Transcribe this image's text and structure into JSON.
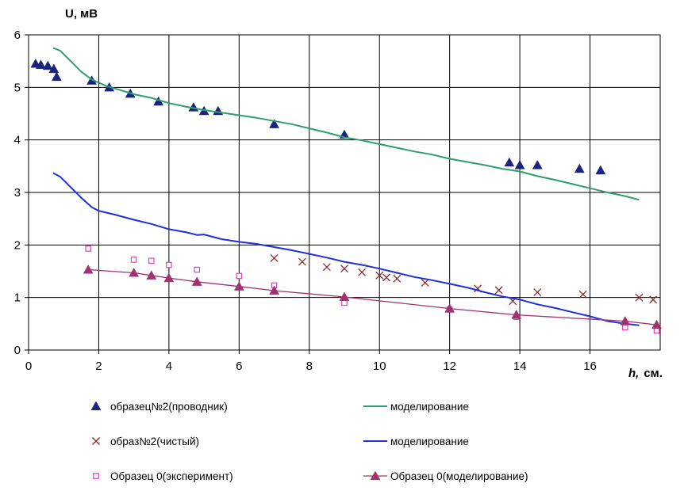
{
  "chart_data": {
    "type": "scatter",
    "xlabel_main": "h,",
    "xlabel_unit": "см.",
    "ylabel": "U, мВ",
    "xlim": [
      0,
      18
    ],
    "ylim": [
      0,
      6
    ],
    "x_ticks": [
      "0",
      "2",
      "4",
      "6",
      "8",
      "10",
      "12",
      "14",
      "16"
    ],
    "y_ticks": [
      "0",
      "1",
      "2",
      "3",
      "4",
      "5",
      "6"
    ],
    "grid": true,
    "legend_position": "bottom",
    "series": [
      {
        "name": "образец№2(проводник)",
        "kind": "scatter",
        "marker": "triangle",
        "color": "#1a237e",
        "points": [
          [
            0.2,
            5.45
          ],
          [
            0.35,
            5.43
          ],
          [
            0.55,
            5.41
          ],
          [
            0.72,
            5.35
          ],
          [
            0.8,
            5.2
          ],
          [
            1.8,
            5.13
          ],
          [
            2.3,
            5.0
          ],
          [
            2.9,
            4.88
          ],
          [
            3.7,
            4.73
          ],
          [
            4.7,
            4.62
          ],
          [
            5.0,
            4.55
          ],
          [
            5.4,
            4.55
          ],
          [
            7.0,
            4.3
          ],
          [
            9.0,
            4.1
          ],
          [
            13.7,
            3.57
          ],
          [
            14.0,
            3.52
          ],
          [
            14.5,
            3.52
          ],
          [
            15.7,
            3.45
          ],
          [
            16.3,
            3.42
          ]
        ]
      },
      {
        "name": "моделирование",
        "kind": "line",
        "color": "#2e9e6e",
        "points": [
          [
            0.7,
            5.75
          ],
          [
            0.9,
            5.7
          ],
          [
            1.2,
            5.5
          ],
          [
            1.5,
            5.3
          ],
          [
            1.8,
            5.15
          ],
          [
            2.2,
            5.03
          ],
          [
            2.6,
            4.95
          ],
          [
            3.0,
            4.87
          ],
          [
            3.5,
            4.8
          ],
          [
            4.0,
            4.7
          ],
          [
            4.5,
            4.63
          ],
          [
            5.0,
            4.57
          ],
          [
            5.5,
            4.52
          ],
          [
            6.0,
            4.47
          ],
          [
            6.5,
            4.42
          ],
          [
            7.0,
            4.36
          ],
          [
            7.5,
            4.3
          ],
          [
            8.0,
            4.22
          ],
          [
            8.5,
            4.14
          ],
          [
            9.0,
            4.05
          ],
          [
            9.5,
            3.99
          ],
          [
            10.0,
            3.92
          ],
          [
            10.5,
            3.85
          ],
          [
            11.0,
            3.78
          ],
          [
            11.5,
            3.72
          ],
          [
            12.0,
            3.64
          ],
          [
            12.5,
            3.58
          ],
          [
            13.0,
            3.52
          ],
          [
            13.5,
            3.45
          ],
          [
            14.0,
            3.4
          ],
          [
            14.5,
            3.31
          ],
          [
            15.0,
            3.24
          ],
          [
            15.5,
            3.16
          ],
          [
            16.0,
            3.08
          ],
          [
            16.5,
            3.0
          ],
          [
            17.0,
            2.93
          ],
          [
            17.4,
            2.86
          ]
        ]
      },
      {
        "name": "образ№2(чистый)",
        "kind": "scatter",
        "marker": "x",
        "color": "#8b2a2a",
        "points": [
          [
            7.0,
            1.75
          ],
          [
            7.8,
            1.68
          ],
          [
            8.5,
            1.58
          ],
          [
            9.0,
            1.55
          ],
          [
            9.5,
            1.48
          ],
          [
            10.0,
            1.42
          ],
          [
            10.2,
            1.38
          ],
          [
            10.5,
            1.36
          ],
          [
            11.3,
            1.28
          ],
          [
            12.8,
            1.17
          ],
          [
            13.4,
            1.14
          ],
          [
            13.8,
            0.93
          ],
          [
            14.5,
            1.1
          ],
          [
            15.8,
            1.06
          ],
          [
            17.4,
            1.0
          ],
          [
            17.8,
            0.96
          ]
        ]
      },
      {
        "name": "моделирование",
        "kind": "line",
        "color": "#1f2fdc",
        "points": [
          [
            0.7,
            3.37
          ],
          [
            0.9,
            3.3
          ],
          [
            1.2,
            3.1
          ],
          [
            1.5,
            2.9
          ],
          [
            1.8,
            2.72
          ],
          [
            2.0,
            2.65
          ],
          [
            2.5,
            2.57
          ],
          [
            3.0,
            2.48
          ],
          [
            3.5,
            2.4
          ],
          [
            4.0,
            2.3
          ],
          [
            4.5,
            2.24
          ],
          [
            4.8,
            2.19
          ],
          [
            5.0,
            2.2
          ],
          [
            5.5,
            2.11
          ],
          [
            6.0,
            2.06
          ],
          [
            6.5,
            2.02
          ],
          [
            7.0,
            1.96
          ],
          [
            7.5,
            1.9
          ],
          [
            8.0,
            1.83
          ],
          [
            8.5,
            1.76
          ],
          [
            9.0,
            1.68
          ],
          [
            9.5,
            1.62
          ],
          [
            10.0,
            1.55
          ],
          [
            10.5,
            1.47
          ],
          [
            11.0,
            1.39
          ],
          [
            11.5,
            1.33
          ],
          [
            12.0,
            1.26
          ],
          [
            12.5,
            1.19
          ],
          [
            13.0,
            1.1
          ],
          [
            13.5,
            1.02
          ],
          [
            14.0,
            0.96
          ],
          [
            14.5,
            0.87
          ],
          [
            15.0,
            0.8
          ],
          [
            15.5,
            0.72
          ],
          [
            16.0,
            0.64
          ],
          [
            16.5,
            0.55
          ],
          [
            17.0,
            0.5
          ],
          [
            17.4,
            0.47
          ]
        ]
      },
      {
        "name": "Образец 0(эксперимент)",
        "kind": "scatter",
        "marker": "square",
        "color": "#e040c8",
        "points": [
          [
            1.7,
            1.93
          ],
          [
            3.0,
            1.72
          ],
          [
            3.5,
            1.7
          ],
          [
            4.0,
            1.62
          ],
          [
            4.8,
            1.53
          ],
          [
            6.0,
            1.41
          ],
          [
            7.0,
            1.23
          ],
          [
            9.0,
            0.9
          ],
          [
            12.0,
            0.77
          ],
          [
            13.9,
            0.63
          ],
          [
            17.0,
            0.43
          ],
          [
            17.9,
            0.37
          ]
        ]
      },
      {
        "name": "Образец 0(моделирование)",
        "kind": "line-marker",
        "marker": "triangle",
        "color": "#a0336e",
        "points": [
          [
            1.7,
            1.53
          ],
          [
            3.0,
            1.47
          ],
          [
            3.5,
            1.42
          ],
          [
            4.0,
            1.37
          ],
          [
            4.8,
            1.3
          ],
          [
            6.0,
            1.21
          ],
          [
            7.0,
            1.13
          ],
          [
            9.0,
            1.01
          ],
          [
            12.0,
            0.79
          ],
          [
            13.9,
            0.67
          ],
          [
            17.0,
            0.55
          ],
          [
            17.9,
            0.48
          ]
        ]
      }
    ]
  },
  "legend": {
    "items": [
      {
        "label": "образец№2(проводник)",
        "series": 0
      },
      {
        "label": "моделирование",
        "series": 1
      },
      {
        "label": "образ№2(чистый)",
        "series": 2
      },
      {
        "label": "моделирование",
        "series": 3
      },
      {
        "label": "Образец 0(эксперимент)",
        "series": 4
      },
      {
        "label": "Образец 0(моделирование)",
        "series": 5
      }
    ]
  }
}
